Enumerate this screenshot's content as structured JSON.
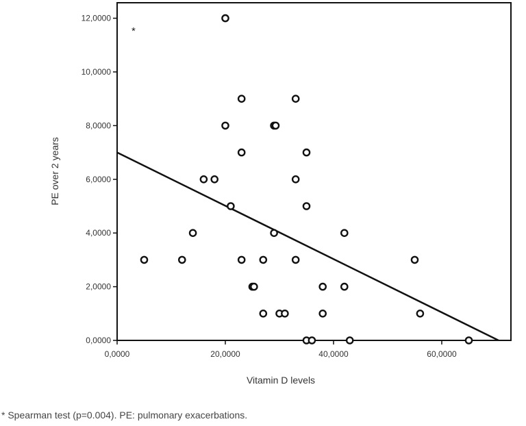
{
  "chart_data": {
    "type": "scatter",
    "title": "",
    "xlabel": "Vitamin D levels",
    "ylabel": "PE over 2 years",
    "xlim": [
      0,
      72
    ],
    "ylim": [
      0,
      12.5
    ],
    "x_ticks": [
      {
        "value": 0,
        "label": "0,0000"
      },
      {
        "value": 20,
        "label": "20,0000"
      },
      {
        "value": 40,
        "label": "40,0000"
      },
      {
        "value": 60,
        "label": "60,0000"
      }
    ],
    "y_ticks": [
      {
        "value": 0,
        "label": "0,0000"
      },
      {
        "value": 2,
        "label": "2,0000"
      },
      {
        "value": 4,
        "label": "4,0000"
      },
      {
        "value": 6,
        "label": "6,0000"
      },
      {
        "value": 8,
        "label": "8,0000"
      },
      {
        "value": 10,
        "label": "10,0000"
      },
      {
        "value": 12,
        "label": "12,0000"
      }
    ],
    "points": [
      {
        "x": 5,
        "y": 3
      },
      {
        "x": 12,
        "y": 3
      },
      {
        "x": 14,
        "y": 4
      },
      {
        "x": 16,
        "y": 6
      },
      {
        "x": 18,
        "y": 6
      },
      {
        "x": 20,
        "y": 12
      },
      {
        "x": 20,
        "y": 8
      },
      {
        "x": 21,
        "y": 5
      },
      {
        "x": 23,
        "y": 9
      },
      {
        "x": 23,
        "y": 7
      },
      {
        "x": 23,
        "y": 3
      },
      {
        "x": 25,
        "y": 2
      },
      {
        "x": 25.3,
        "y": 2
      },
      {
        "x": 27,
        "y": 3
      },
      {
        "x": 27,
        "y": 1
      },
      {
        "x": 29,
        "y": 8
      },
      {
        "x": 29.3,
        "y": 8
      },
      {
        "x": 29,
        "y": 4
      },
      {
        "x": 30,
        "y": 1
      },
      {
        "x": 31,
        "y": 1
      },
      {
        "x": 33,
        "y": 9
      },
      {
        "x": 33,
        "y": 6
      },
      {
        "x": 33,
        "y": 3
      },
      {
        "x": 35,
        "y": 7
      },
      {
        "x": 35,
        "y": 5
      },
      {
        "x": 35,
        "y": 0
      },
      {
        "x": 36,
        "y": 0
      },
      {
        "x": 38,
        "y": 2
      },
      {
        "x": 38,
        "y": 1
      },
      {
        "x": 42,
        "y": 4
      },
      {
        "x": 42,
        "y": 2
      },
      {
        "x": 43,
        "y": 0
      },
      {
        "x": 55,
        "y": 3
      },
      {
        "x": 56,
        "y": 1
      },
      {
        "x": 65,
        "y": 0
      }
    ],
    "fit_line": {
      "x": [
        0,
        70.5
      ],
      "y": [
        7.0,
        0
      ]
    },
    "annotation": "*",
    "grid": false
  },
  "caption": "* Spearman test (p=0.004). PE: pulmonary exacerbations."
}
